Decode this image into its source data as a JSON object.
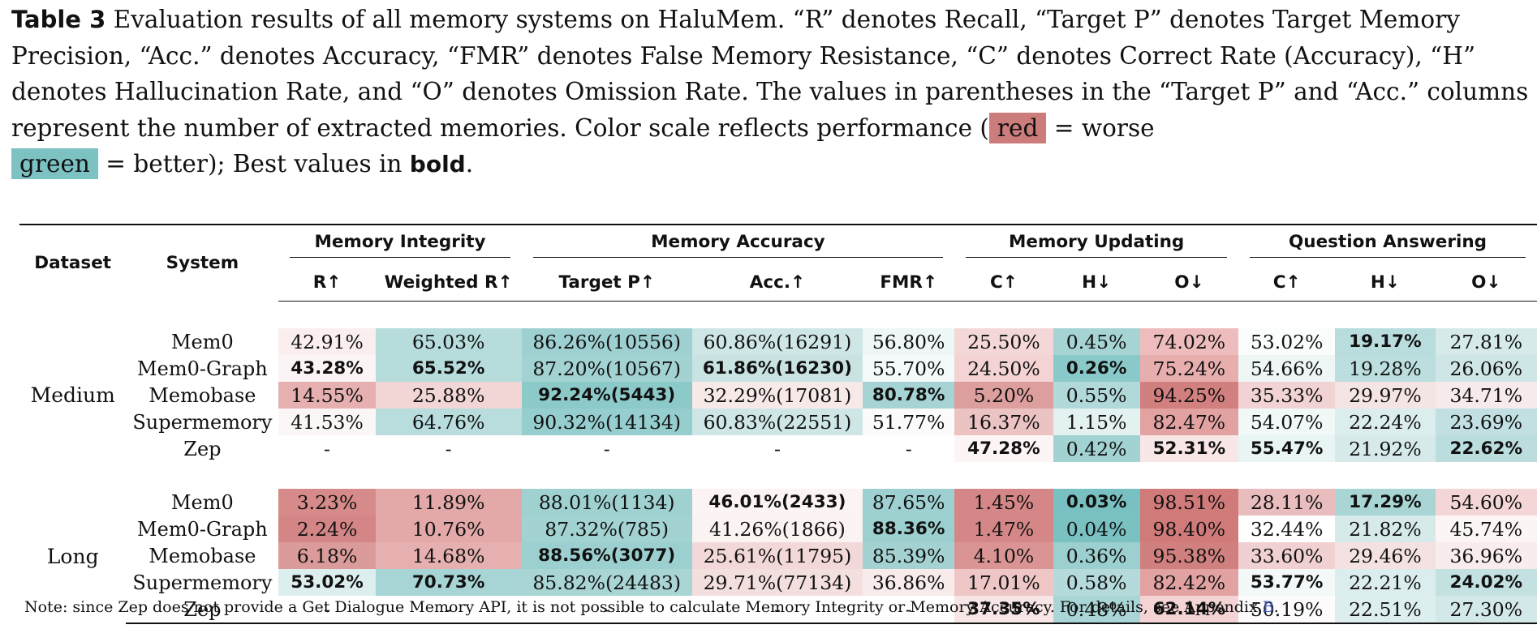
{
  "caption": {
    "label": "Table 3",
    "text1": "Evaluation results of all memory systems on HaluMem. “R” denotes Recall, “Target P” denotes Target Memory Precision, “Acc.” denotes Accuracy, “FMR” denotes False Memory Resistance, “C” denotes Correct Rate (Accuracy), “H” denotes Hallucination Rate, and “O” denotes Omission Rate. The values in parentheses in the “Target P” and “Acc.” columns represent the number of extracted memories. Color scale reflects performance (",
    "red_label": "red",
    "text2": " = worse",
    "green_label": "green",
    "text3": " = better); Best values in ",
    "bold_word": "bold",
    "text4": "."
  },
  "colors": {
    "worse": "#cd7c7c",
    "better": "#7cc2c3"
  },
  "header": {
    "dataset": "Dataset",
    "system": "System",
    "groups": [
      "Memory Integrity",
      "Memory Accuracy",
      "Memory Updating",
      "Question Answering"
    ],
    "columns": [
      "R↑",
      "Weighted R↑",
      "Target P↑",
      "Acc.↑",
      "FMR↑",
      "C↑",
      "H↓",
      "O↓",
      "C↑",
      "H↓",
      "O↓"
    ]
  },
  "sections": [
    {
      "dataset": "Medium",
      "rows": [
        {
          "system": "Mem0",
          "cells": [
            {
              "v": "42.91%",
              "bg": "#faeeee",
              "b": false
            },
            {
              "v": "65.03%",
              "bg": "#b7dcdc",
              "b": false
            },
            {
              "v": "86.26%(10556)",
              "bg": "#9fd0d1",
              "b": false
            },
            {
              "v": "60.86%(16291)",
              "bg": "#cfe6e6",
              "b": false
            },
            {
              "v": "56.80%",
              "bg": "#eef6f6",
              "b": false
            },
            {
              "v": "25.50%",
              "bg": "#f4d8d8",
              "b": false
            },
            {
              "v": "0.45%",
              "bg": "#a6d3d4",
              "b": false
            },
            {
              "v": "74.02%",
              "bg": "#eebcbc",
              "b": false
            },
            {
              "v": "53.02%",
              "bg": "#fbfdfd",
              "b": false
            },
            {
              "v": "19.17%",
              "bg": "#b9dcdd",
              "b": true
            },
            {
              "v": "27.81%",
              "bg": "#d6eaea",
              "b": false
            }
          ]
        },
        {
          "system": "Mem0-Graph",
          "cells": [
            {
              "v": "43.28%",
              "bg": "#fbf4f4",
              "b": true
            },
            {
              "v": "65.52%",
              "bg": "#b7dcdc",
              "b": true
            },
            {
              "v": "87.20%(10567)",
              "bg": "#a3d2d2",
              "b": false
            },
            {
              "v": "61.86%(16230)",
              "bg": "#c9e3e3",
              "b": true
            },
            {
              "v": "55.70%",
              "bg": "#f4f9f9",
              "b": false
            },
            {
              "v": "24.50%",
              "bg": "#f3d3d3",
              "b": false
            },
            {
              "v": "0.26%",
              "bg": "#8ac9ca",
              "b": true
            },
            {
              "v": "75.24%",
              "bg": "#e8aeae",
              "b": false
            },
            {
              "v": "54.66%",
              "bg": "#eef6f6",
              "b": false
            },
            {
              "v": "19.28%",
              "bg": "#bcdede",
              "b": false
            },
            {
              "v": "26.06%",
              "bg": "#cfe6e6",
              "b": false
            }
          ]
        },
        {
          "system": "Memobase",
          "cells": [
            {
              "v": "14.55%",
              "bg": "#e6b0b0",
              "b": false
            },
            {
              "v": "25.88%",
              "bg": "#f2d6d6",
              "b": false
            },
            {
              "v": "92.24%(5443)",
              "bg": "#8ccaca",
              "b": true
            },
            {
              "v": "32.29%(17081)",
              "bg": "#f8e9e9",
              "b": false
            },
            {
              "v": "80.78%",
              "bg": "#a6d3d4",
              "b": true
            },
            {
              "v": "5.20%",
              "bg": "#dd9e9e",
              "b": false
            },
            {
              "v": "0.55%",
              "bg": "#b2d9da",
              "b": false
            },
            {
              "v": "94.25%",
              "bg": "#d27f7f",
              "b": false
            },
            {
              "v": "35.33%",
              "bg": "#f1d3d3",
              "b": false
            },
            {
              "v": "29.97%",
              "bg": "#f5e4e4",
              "b": false
            },
            {
              "v": "34.71%",
              "bg": "#f7eaea",
              "b": false
            }
          ]
        },
        {
          "system": "Supermemory",
          "cells": [
            {
              "v": "41.53%",
              "bg": "#fcf7f7",
              "b": false
            },
            {
              "v": "64.76%",
              "bg": "#b9dddd",
              "b": false
            },
            {
              "v": "90.32%(14134)",
              "bg": "#96cdce",
              "b": false
            },
            {
              "v": "60.83%(22551)",
              "bg": "#cfe6e6",
              "b": false
            },
            {
              "v": "51.77%",
              "bg": "#fbfbfb",
              "b": false
            },
            {
              "v": "16.37%",
              "bg": "#ecc3c3",
              "b": false
            },
            {
              "v": "1.15%",
              "bg": "#e3f1f1",
              "b": false
            },
            {
              "v": "82.47%",
              "bg": "#e3a2a2",
              "b": false
            },
            {
              "v": "54.07%",
              "bg": "#f1f8f8",
              "b": false
            },
            {
              "v": "22.24%",
              "bg": "#dbeded",
              "b": false
            },
            {
              "v": "23.69%",
              "bg": "#c2e0e1",
              "b": false
            }
          ]
        },
        {
          "system": "Zep",
          "cells": [
            {
              "v": "-",
              "bg": "",
              "b": false
            },
            {
              "v": "-",
              "bg": "",
              "b": false
            },
            {
              "v": "-",
              "bg": "",
              "b": false
            },
            {
              "v": "-",
              "bg": "",
              "b": false
            },
            {
              "v": "-",
              "bg": "",
              "b": false
            },
            {
              "v": "47.28%",
              "bg": "#fdf5f5",
              "b": true
            },
            {
              "v": "0.42%",
              "bg": "#a2d2d2",
              "b": false
            },
            {
              "v": "52.31%",
              "bg": "#f9e6e6",
              "b": true
            },
            {
              "v": "55.47%",
              "bg": "#e9f4f4",
              "b": true
            },
            {
              "v": "21.92%",
              "bg": "#d6eaea",
              "b": false
            },
            {
              "v": "22.62%",
              "bg": "#bbdddd",
              "b": true
            }
          ]
        }
      ]
    },
    {
      "dataset": "Long",
      "rows": [
        {
          "system": "Mem0",
          "cells": [
            {
              "v": "3.23%",
              "bg": "#d68a8a",
              "b": false
            },
            {
              "v": "11.89%",
              "bg": "#e3a8a8",
              "b": false
            },
            {
              "v": "88.01%(1134)",
              "bg": "#a0d1d1",
              "b": false
            },
            {
              "v": "46.01%(2433)",
              "bg": "#fcf3f3",
              "b": true
            },
            {
              "v": "87.65%",
              "bg": "#9fd0d1",
              "b": false
            },
            {
              "v": "1.45%",
              "bg": "#d58686",
              "b": false
            },
            {
              "v": "0.03%",
              "bg": "#78c0c1",
              "b": true
            },
            {
              "v": "98.51%",
              "bg": "#d07a7a",
              "b": false
            },
            {
              "v": "28.11%",
              "bg": "#e9bdbd",
              "b": false
            },
            {
              "v": "17.29%",
              "bg": "#a9d5d5",
              "b": true
            },
            {
              "v": "54.60%",
              "bg": "#f4d6d6",
              "b": false
            }
          ]
        },
        {
          "system": "Mem0-Graph",
          "cells": [
            {
              "v": "2.24%",
              "bg": "#d48585",
              "b": false
            },
            {
              "v": "10.76%",
              "bg": "#e3a8a8",
              "b": false
            },
            {
              "v": "87.32%(785)",
              "bg": "#a3d2d2",
              "b": false
            },
            {
              "v": "41.26%(1866)",
              "bg": "#fbf2f2",
              "b": false
            },
            {
              "v": "88.36%",
              "bg": "#9ccfcf",
              "b": true
            },
            {
              "v": "1.47%",
              "bg": "#d58686",
              "b": false
            },
            {
              "v": "0.04%",
              "bg": "#7ac1c2",
              "b": false
            },
            {
              "v": "98.40%",
              "bg": "#d07a7a",
              "b": false
            },
            {
              "v": "32.44%",
              "bg": "#eeccc",
              "b": false
            },
            {
              "v": "21.82%",
              "bg": "#d6eaea",
              "b": false
            },
            {
              "v": "45.74%",
              "bg": "#fbf5f5",
              "b": false
            }
          ]
        },
        {
          "system": "Memobase",
          "cells": [
            {
              "v": "6.18%",
              "bg": "#dc9b9b",
              "b": false
            },
            {
              "v": "14.68%",
              "bg": "#e6b0b0",
              "b": false
            },
            {
              "v": "88.56%(3077)",
              "bg": "#9ccfcf",
              "b": true
            },
            {
              "v": "25.61%(11795)",
              "bg": "#f2d8d8",
              "b": false
            },
            {
              "v": "85.39%",
              "bg": "#a4d2d3",
              "b": false
            },
            {
              "v": "4.10%",
              "bg": "#da9494",
              "b": false
            },
            {
              "v": "0.36%",
              "bg": "#9ccfcf",
              "b": false
            },
            {
              "v": "95.38%",
              "bg": "#d18080",
              "b": false
            },
            {
              "v": "33.60%",
              "bg": "#f0d0d0",
              "b": false
            },
            {
              "v": "29.46%",
              "bg": "#f4e2e2",
              "b": false
            },
            {
              "v": "36.96%",
              "bg": "#f8ecec",
              "b": false
            }
          ]
        },
        {
          "system": "Supermemory",
          "cells": [
            {
              "v": "53.02%",
              "bg": "#dceeee",
              "b": true
            },
            {
              "v": "70.73%",
              "bg": "#a7d4d4",
              "b": true
            },
            {
              "v": "85.82%(24483)",
              "bg": "#a9d5d5",
              "b": false
            },
            {
              "v": "29.71%(77134)",
              "bg": "#f4dfdf",
              "b": false
            },
            {
              "v": "36.86%",
              "bg": "#f8ebeb",
              "b": false
            },
            {
              "v": "17.01%",
              "bg": "#eec6c6",
              "b": false
            },
            {
              "v": "0.58%",
              "bg": "#b4dadb",
              "b": false
            },
            {
              "v": "82.42%",
              "bg": "#e3a2a2",
              "b": false
            },
            {
              "v": "53.77%",
              "bg": "#f3f9f9",
              "b": true
            },
            {
              "v": "22.21%",
              "bg": "#dbeded",
              "b": false
            },
            {
              "v": "24.02%",
              "bg": "#c4e1e2",
              "b": true
            }
          ]
        },
        {
          "system": "Zep",
          "cells": [
            {
              "v": "-",
              "bg": "",
              "b": false
            },
            {
              "v": "-",
              "bg": "",
              "b": false
            },
            {
              "v": "-",
              "bg": "",
              "b": false
            },
            {
              "v": "-",
              "bg": "",
              "b": false
            },
            {
              "v": "-",
              "bg": "",
              "b": false
            },
            {
              "v": "37.35%",
              "bg": "#f8e6e6",
              "b": true
            },
            {
              "v": "0.48%",
              "bg": "#aad5d6",
              "b": false
            },
            {
              "v": "62.14%",
              "bg": "#f3d3d3",
              "b": true
            },
            {
              "v": "50.19%",
              "bg": "#fdfbfb",
              "b": false
            },
            {
              "v": "22.51%",
              "bg": "#ddeeee",
              "b": false
            },
            {
              "v": "27.30%",
              "bg": "#d3e8e8",
              "b": false
            }
          ]
        }
      ]
    }
  ],
  "note": {
    "text": "Note: since Zep does not provide a Get Dialogue Memory API, it is not possible to calculate Memory Integrity or Memory Accuracy. For details, see Appendix ",
    "link": "B",
    "end": "."
  }
}
